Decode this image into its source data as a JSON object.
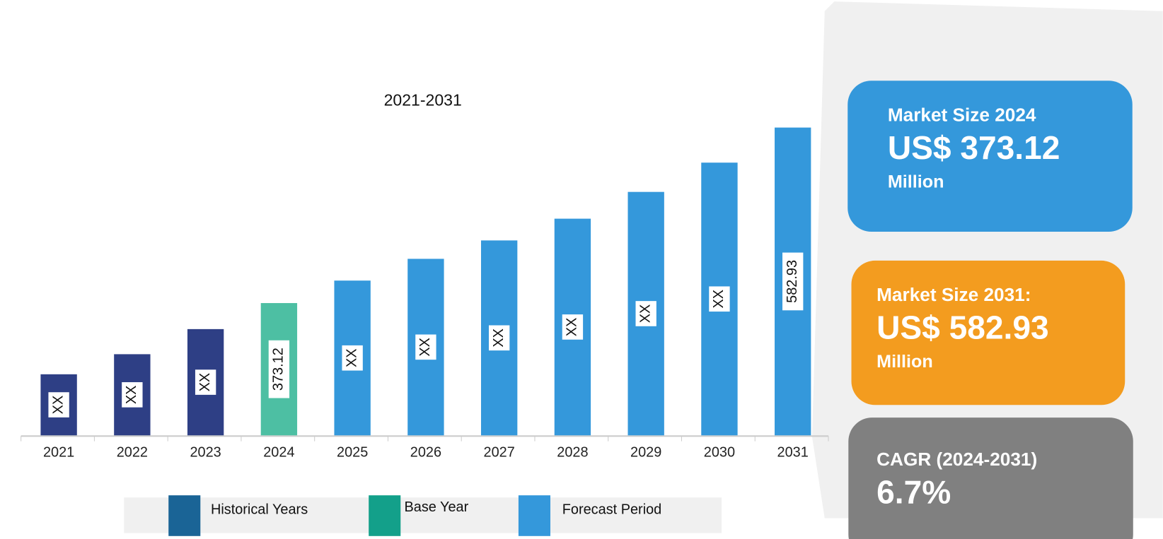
{
  "chart_data": {
    "type": "bar",
    "title": "2021-2031",
    "categories": [
      "2021",
      "2022",
      "2023",
      "2024",
      "2025",
      "2026",
      "2027",
      "2028",
      "2029",
      "2030",
      "2031"
    ],
    "values": [
      288,
      312,
      342,
      373.12,
      400,
      426,
      448,
      474,
      506,
      541,
      582.93
    ],
    "value_labels": [
      "XX",
      "XX",
      "XX",
      "373.12",
      "XX",
      "XX",
      "XX",
      "XX",
      "XX",
      "XX",
      "582.93"
    ],
    "colors": [
      "#2e3f85",
      "#2e3f85",
      "#2e3f85",
      "#4dbfa3",
      "#3498db",
      "#3498db",
      "#3498db",
      "#3498db",
      "#3498db",
      "#3498db",
      "#3498db"
    ],
    "ylim": [
      215,
      600
    ],
    "legend": [
      {
        "label": "Historical Years",
        "color": "#1a6496"
      },
      {
        "label": "Base Year",
        "color": "#13a08a"
      },
      {
        "label": "Forecast Period",
        "color": "#3498db"
      }
    ]
  },
  "cards": [
    {
      "title": "Market Size 2024",
      "value": "US$ 373.12",
      "unit": "Million",
      "color": "#3498db"
    },
    {
      "title": "Market Size 2031:",
      "value": "US$ 582.93",
      "unit": "Million",
      "color": "#f39c1f"
    },
    {
      "title": "CAGR (2024-2031)",
      "value": "6.7%",
      "color": "#808080"
    }
  ]
}
